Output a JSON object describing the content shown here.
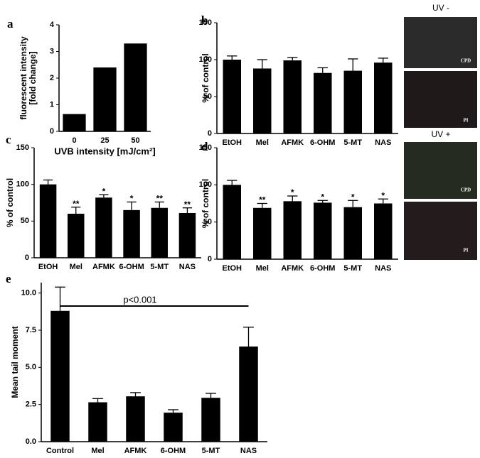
{
  "chart_data": [
    {
      "type": "bar",
      "panel": "a",
      "categories": [
        "0",
        "25",
        "50"
      ],
      "values": [
        0.65,
        2.4,
        3.3
      ],
      "ylim": [
        0,
        4
      ],
      "yticks": [
        0,
        1,
        2,
        3,
        4
      ],
      "ylabel": [
        "fluorescent intensity",
        "[fold change]"
      ],
      "xlabel": "UVB intensity [mJ/cm²]",
      "color": "#000000"
    },
    {
      "type": "bar",
      "panel": "b",
      "categories": [
        "EtOH",
        "Mel",
        "AFMK",
        "6-OHM",
        "5-MT",
        "NAS"
      ],
      "values": [
        100,
        88,
        99,
        82,
        85,
        96
      ],
      "errors": [
        5,
        12,
        4,
        7,
        16,
        6
      ],
      "ylim": [
        0,
        150
      ],
      "yticks": [
        0,
        50,
        100,
        150
      ],
      "ylabel": [
        "% of control"
      ],
      "color": "#000000"
    },
    {
      "type": "bar",
      "panel": "c",
      "categories": [
        "EtOH",
        "Mel",
        "AFMK",
        "6-OHM",
        "5-MT",
        "NAS"
      ],
      "values": [
        100,
        60,
        82,
        65,
        68,
        61
      ],
      "errors": [
        6,
        9,
        4,
        11,
        8,
        7
      ],
      "significance": [
        null,
        "**",
        "*",
        "*",
        "**",
        "**"
      ],
      "ylim": [
        0,
        150
      ],
      "yticks": [
        0,
        50,
        100,
        150
      ],
      "ylabel": [
        "% of control"
      ],
      "color": "#000000"
    },
    {
      "type": "bar",
      "panel": "d",
      "categories": [
        "EtOH",
        "Mel",
        "AFMK",
        "6-OHM",
        "5-MT",
        "NAS"
      ],
      "values": [
        100,
        69,
        78,
        76,
        70,
        75
      ],
      "errors": [
        6,
        6,
        7,
        3,
        9,
        6
      ],
      "significance": [
        null,
        "**",
        "*",
        "*",
        "*",
        "*"
      ],
      "ylim": [
        0,
        150
      ],
      "yticks": [
        0,
        50,
        100,
        150
      ],
      "ylabel": [
        "% of control"
      ],
      "color": "#000000"
    },
    {
      "type": "bar",
      "panel": "e",
      "categories": [
        "Control",
        "Mel",
        "AFMK",
        "6-OHM",
        "5-MT",
        "NAS"
      ],
      "values": [
        8.8,
        2.65,
        3.05,
        1.95,
        2.95,
        6.4
      ],
      "errors": [
        1.6,
        0.25,
        0.25,
        0.2,
        0.3,
        1.3
      ],
      "ylim": [
        0,
        10.7
      ],
      "yticks": [
        {
          "value": 0,
          "label": "0.0"
        },
        {
          "value": 2.5,
          "label": "2.5"
        },
        {
          "value": 5,
          "label": "5.0"
        },
        {
          "value": 7.5,
          "label": "7.5"
        },
        {
          "value": 10,
          "label": "10.0"
        }
      ],
      "ylabel": [
        "Mean tail moment"
      ],
      "annotation": "p<0.001",
      "color": "#000000"
    }
  ],
  "micrographs": [
    {
      "title": "UV -",
      "labels": [
        "CPD",
        "PI"
      ]
    },
    {
      "title": "UV +",
      "labels": [
        "CPD",
        "PI"
      ]
    }
  ]
}
